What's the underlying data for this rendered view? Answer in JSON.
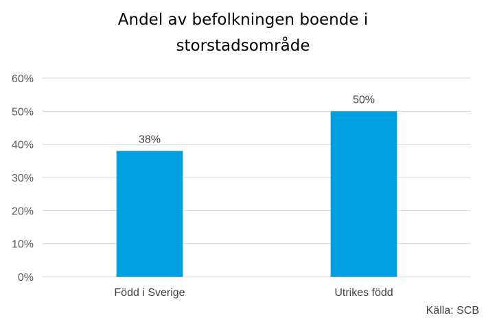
{
  "chart_data": {
    "type": "bar",
    "title_lines": [
      "Andel av befolkningen boende i",
      "storstadsområde"
    ],
    "categories": [
      "Född i Sverige",
      "Utrikes född"
    ],
    "values": [
      38,
      50
    ],
    "data_labels": [
      "38%",
      "50%"
    ],
    "ylim": [
      0,
      60
    ],
    "yticks": [
      0,
      10,
      20,
      30,
      40,
      50,
      60
    ],
    "ytick_labels": [
      "0%",
      "10%",
      "20%",
      "30%",
      "40%",
      "50%",
      "60%"
    ],
    "grid": true,
    "bar_color": "#009FDF",
    "grid_color": "#D9D9D9"
  },
  "source": "Källa: SCB"
}
